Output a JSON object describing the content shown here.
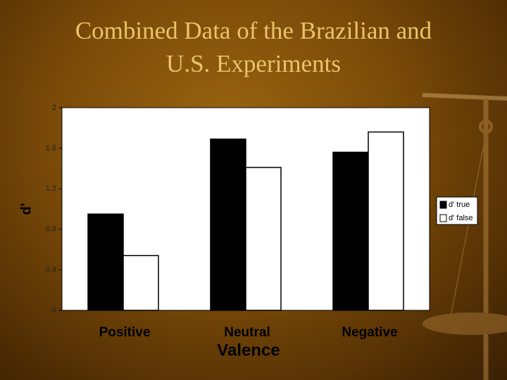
{
  "chart_data": {
    "type": "bar",
    "title": [
      "Combined Data of the Brazilian and",
      "U.S. Experiments"
    ],
    "y_label": "d'",
    "x_label": "Valence",
    "categories": [
      "Positive",
      "Neutral",
      "Negative"
    ],
    "series": [
      {
        "name": "d' true",
        "color": "#000000",
        "values": [
          0.95,
          1.69,
          1.56
        ]
      },
      {
        "name": "d' false",
        "color": "#ffffff",
        "values": [
          0.54,
          1.41,
          1.76
        ]
      }
    ],
    "ylim": [
      0,
      2
    ],
    "yticks": [
      0,
      0.4,
      0.8,
      1.2,
      1.6,
      2
    ],
    "grid": false,
    "legend": "right"
  }
}
